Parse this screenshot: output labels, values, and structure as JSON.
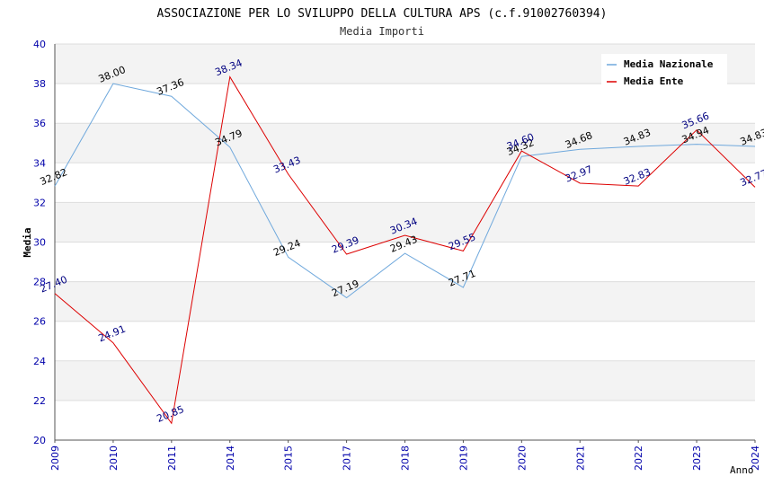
{
  "chart_data": {
    "type": "line",
    "title": "ASSOCIAZIONE PER LO SVILUPPO DELLA CULTURA APS (c.f.91002760394)",
    "subtitle": "Media Importi",
    "xlabel": "Anno",
    "ylabel": "Media",
    "ylim": [
      20,
      40
    ],
    "yticks": [
      "20",
      "22",
      "24",
      "26",
      "28",
      "30",
      "32",
      "34",
      "36",
      "38",
      "40"
    ],
    "categories": [
      "2009",
      "2010",
      "2011",
      "2014",
      "2015",
      "2017",
      "2018",
      "2019",
      "2020",
      "2021",
      "2022",
      "2023",
      "2024"
    ],
    "legend_position": "top-right",
    "grid": true,
    "series": [
      {
        "name": "Media Nazionale",
        "color": "#6fa8dc",
        "label_color": "#000000",
        "values": [
          32.82,
          38.0,
          37.36,
          34.79,
          29.24,
          27.19,
          29.43,
          27.71,
          34.32,
          34.68,
          34.83,
          34.94,
          34.83
        ],
        "labels": [
          "32.82",
          "38.00",
          "37.36",
          "34.79",
          "29.24",
          "27.19",
          "29.43",
          "27.71",
          "34.32",
          "34.68",
          "34.83",
          "34.94",
          "34.83"
        ]
      },
      {
        "name": "Media Ente",
        "color": "#dd0000",
        "label_color": "#000080",
        "values": [
          27.4,
          24.91,
          20.85,
          38.34,
          33.43,
          29.39,
          30.34,
          29.55,
          34.6,
          32.97,
          32.83,
          35.66,
          32.77
        ],
        "labels": [
          "27.40",
          "24.91",
          "20.85",
          "38.34",
          "33.43",
          "29.39",
          "30.34",
          "29.55",
          "34.60",
          "32.97",
          "32.83",
          "35.66",
          "32.77"
        ]
      }
    ]
  }
}
